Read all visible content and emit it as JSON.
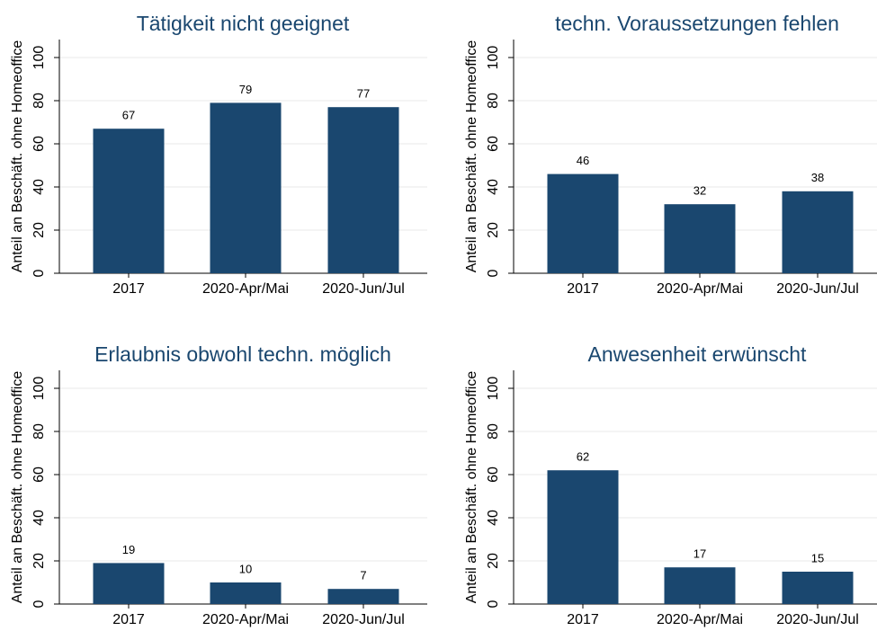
{
  "chart_data": [
    {
      "type": "bar",
      "title": "Tätigkeit nicht geeignet",
      "ylabel": "Anteil an Beschäft. ohne Homeoffice",
      "categories": [
        "2017",
        "2020-Apr/Mai",
        "2020-Jun/Jul"
      ],
      "values": [
        67,
        79,
        77
      ],
      "color": "#1a476f",
      "ylim": [
        0,
        100
      ],
      "yticks": [
        0,
        20,
        40,
        60,
        80,
        100
      ],
      "grid": true
    },
    {
      "type": "bar",
      "title": "techn. Voraussetzungen fehlen",
      "ylabel": "Anteil an Beschäft. ohne Homeoffice",
      "categories": [
        "2017",
        "2020-Apr/Mai",
        "2020-Jun/Jul"
      ],
      "values": [
        46,
        32,
        38
      ],
      "color": "#1a476f",
      "ylim": [
        0,
        100
      ],
      "yticks": [
        0,
        20,
        40,
        60,
        80,
        100
      ],
      "grid": true
    },
    {
      "type": "bar",
      "title": "Erlaubnis obwohl techn. möglich",
      "ylabel": "Anteil an Beschäft. ohne Homeoffice",
      "categories": [
        "2017",
        "2020-Apr/Mai",
        "2020-Jun/Jul"
      ],
      "values": [
        19,
        10,
        7
      ],
      "color": "#1a476f",
      "ylim": [
        0,
        100
      ],
      "yticks": [
        0,
        20,
        40,
        60,
        80,
        100
      ],
      "grid": true
    },
    {
      "type": "bar",
      "title": "Anwesenheit erwünscht",
      "ylabel": "Anteil an Beschäft. ohne Homeoffice",
      "categories": [
        "2017",
        "2020-Apr/Mai",
        "2020-Jun/Jul"
      ],
      "values": [
        62,
        17,
        15
      ],
      "color": "#1a476f",
      "ylim": [
        0,
        100
      ],
      "yticks": [
        0,
        20,
        40,
        60,
        80,
        100
      ],
      "grid": true
    }
  ]
}
